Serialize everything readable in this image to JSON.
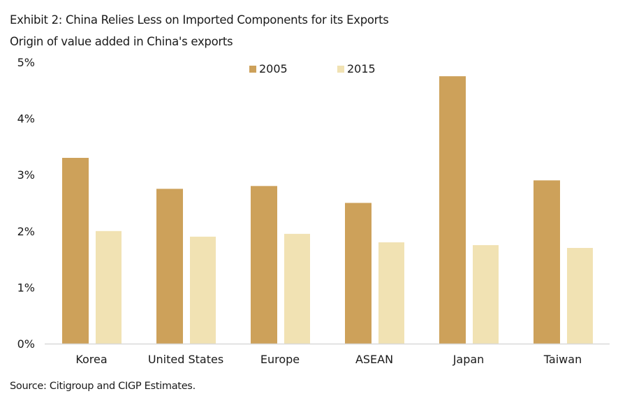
{
  "header": {
    "title": "Exhibit 2: China Relies Less on Imported Components for its Exports",
    "subtitle": "Origin of value added in China's exports"
  },
  "footer": {
    "source": "Source: Citigroup and CIGP Estimates."
  },
  "colors": {
    "series_2005": "#CDA15A",
    "series_2015": "#F1E2B3",
    "axis": "#D9D9D9",
    "text": "#1a1a1a"
  },
  "chart_data": {
    "type": "bar",
    "title": "Exhibit 2: China Relies Less on Imported Components for its Exports",
    "subtitle": "Origin of value added in China's exports",
    "xlabel": "",
    "ylabel": "",
    "categories": [
      "Korea",
      "United States",
      "Europe",
      "ASEAN",
      "Japan",
      "Taiwan"
    ],
    "series": [
      {
        "name": "2005",
        "values": [
          3.3,
          2.75,
          2.8,
          2.5,
          4.75,
          2.9
        ]
      },
      {
        "name": "2015",
        "values": [
          2.0,
          1.9,
          1.95,
          1.8,
          1.75,
          1.7
        ]
      }
    ],
    "ylim": [
      0,
      5
    ],
    "yticks": [
      0,
      1,
      2,
      3,
      4,
      5
    ],
    "ytick_labels": [
      "0%",
      "1%",
      "2%",
      "3%",
      "4%",
      "5%"
    ],
    "grid": false,
    "legend": {
      "entries": [
        "2005",
        "2015"
      ],
      "placement": "top-center"
    },
    "unit": "%"
  }
}
